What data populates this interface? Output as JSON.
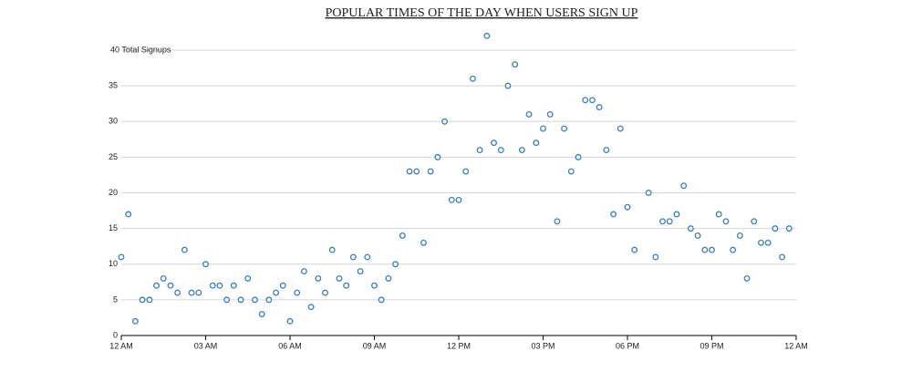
{
  "chart_data": {
    "type": "scatter",
    "title": "POPULAR TIMES OF THE DAY WHEN USERS SIGN UP",
    "x": [
      0,
      0.25,
      0.5,
      0.75,
      1,
      1.25,
      1.5,
      1.75,
      2,
      2.25,
      2.5,
      2.75,
      3,
      3.25,
      3.5,
      3.75,
      4,
      4.25,
      4.5,
      4.75,
      5,
      5.25,
      5.5,
      5.75,
      6,
      6.25,
      6.5,
      6.75,
      7,
      7.25,
      7.5,
      7.75,
      8,
      8.25,
      8.5,
      8.75,
      9,
      9.25,
      9.5,
      9.75,
      10,
      10.25,
      10.5,
      10.75,
      11,
      11.25,
      11.5,
      11.75,
      12,
      12.25,
      12.5,
      12.75,
      13,
      13.25,
      13.5,
      13.75,
      14,
      14.25,
      14.5,
      14.75,
      15,
      15.25,
      15.5,
      15.75,
      16,
      16.25,
      16.5,
      16.75,
      17,
      17.25,
      17.5,
      17.75,
      18,
      18.25,
      18.75,
      19,
      19.25,
      19.5,
      19.75,
      20,
      20.25,
      20.5,
      20.75,
      21,
      21.25,
      21.5,
      21.75,
      22,
      22.25,
      22.5,
      22.75,
      23,
      23.25,
      23.5,
      23.75
    ],
    "values": [
      11,
      17,
      2,
      5,
      5,
      7,
      8,
      7,
      6,
      12,
      6,
      6,
      10,
      7,
      7,
      5,
      7,
      5,
      8,
      5,
      3,
      5,
      6,
      7,
      2,
      6,
      9,
      4,
      8,
      6,
      12,
      8,
      7,
      11,
      9,
      11,
      7,
      5,
      8,
      10,
      14,
      23,
      23,
      13,
      23,
      25,
      30,
      19,
      19,
      23,
      36,
      26,
      42,
      27,
      26,
      35,
      38,
      26,
      31,
      27,
      29,
      31,
      16,
      29,
      23,
      25,
      33,
      33,
      32,
      26,
      17,
      29,
      18,
      12,
      20,
      11,
      16,
      16,
      17,
      21,
      15,
      14,
      12,
      12,
      17,
      16,
      12,
      14,
      8,
      16,
      13,
      13,
      15,
      11,
      15
    ],
    "color": "#3a7fbf",
    "xlim": [
      0,
      24
    ],
    "xticks": [
      {
        "value": 0,
        "label": "12 AM"
      },
      {
        "value": 3,
        "label": "03 AM"
      },
      {
        "value": 6,
        "label": "06 AM"
      },
      {
        "value": 9,
        "label": "09 AM"
      },
      {
        "value": 12,
        "label": "12 PM"
      },
      {
        "value": 15,
        "label": "03 PM"
      },
      {
        "value": 18,
        "label": "06 PM"
      },
      {
        "value": 21,
        "label": "09 PM"
      },
      {
        "value": 24,
        "label": "12 AM"
      }
    ],
    "ylim": [
      0,
      40
    ],
    "yticks": [
      0,
      5,
      10,
      15,
      20,
      25,
      30,
      35,
      {
        "value": 40,
        "label": "40 Total Signups"
      }
    ],
    "grid": true
  }
}
